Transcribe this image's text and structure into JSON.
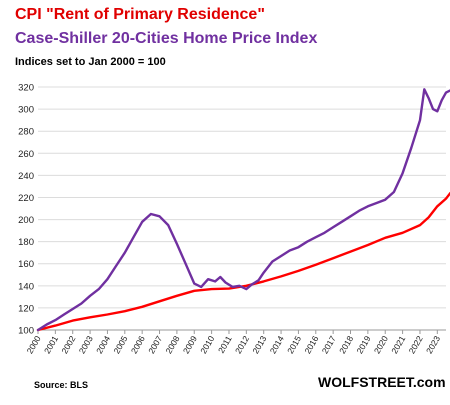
{
  "chart_data": {
    "type": "line",
    "title": "CPI \"Rent of Primary Residence\"",
    "title2": "Case-Shiller 20-Cities Home Price Index",
    "subtitle": "Indices set to Jan 2000 = 100",
    "source": "Source: BLS",
    "brand": "WOLFSTREET.com",
    "ylim": [
      100,
      330
    ],
    "xlim": [
      2000,
      2023.5
    ],
    "yticks": [
      100,
      120,
      140,
      160,
      180,
      200,
      220,
      240,
      260,
      280,
      300,
      320
    ],
    "xticks": [
      "2000",
      "2001",
      "2002",
      "2003",
      "2004",
      "2005",
      "2006",
      "2007",
      "2008",
      "2009",
      "2010",
      "2011",
      "2012",
      "2013",
      "2014",
      "2015",
      "2016",
      "2017",
      "2018",
      "2019",
      "2020",
      "2021",
      "2022",
      "2023"
    ],
    "grid": true,
    "series": [
      {
        "name": "CPI \"Rent of Primary Residence\"",
        "color": "#ff0000",
        "points": [
          [
            2000,
            100
          ],
          [
            2001,
            104
          ],
          [
            2002,
            108.5
          ],
          [
            2003,
            111.5
          ],
          [
            2004,
            114
          ],
          [
            2005,
            117
          ],
          [
            2006,
            121
          ],
          [
            2007,
            126
          ],
          [
            2008,
            131
          ],
          [
            2009,
            135.5
          ],
          [
            2010,
            137
          ],
          [
            2011,
            137.5
          ],
          [
            2012,
            140
          ],
          [
            2013,
            144
          ],
          [
            2014,
            148.5
          ],
          [
            2015,
            153.5
          ],
          [
            2016,
            159
          ],
          [
            2017,
            165
          ],
          [
            2018,
            171
          ],
          [
            2019,
            177
          ],
          [
            2020,
            183.5
          ],
          [
            2021,
            188
          ],
          [
            2022,
            195
          ],
          [
            2022.5,
            202
          ],
          [
            2023,
            212
          ],
          [
            2023.5,
            219
          ],
          [
            2023.75,
            224
          ]
        ]
      },
      {
        "name": "Case-Shiller 20-Cities Home Price Index",
        "color": "#7030a0",
        "points": [
          [
            2000,
            100
          ],
          [
            2000.5,
            105
          ],
          [
            2001,
            109
          ],
          [
            2001.5,
            114
          ],
          [
            2002,
            119
          ],
          [
            2002.5,
            124
          ],
          [
            2003,
            131
          ],
          [
            2003.5,
            137
          ],
          [
            2004,
            146
          ],
          [
            2004.5,
            158
          ],
          [
            2005,
            170
          ],
          [
            2005.5,
            184
          ],
          [
            2006,
            198
          ],
          [
            2006.5,
            205
          ],
          [
            2007,
            203
          ],
          [
            2007.5,
            195
          ],
          [
            2008,
            178
          ],
          [
            2008.5,
            160
          ],
          [
            2009,
            142
          ],
          [
            2009.4,
            139
          ],
          [
            2009.8,
            146
          ],
          [
            2010.2,
            144
          ],
          [
            2010.5,
            148
          ],
          [
            2010.8,
            143
          ],
          [
            2011.2,
            139
          ],
          [
            2011.6,
            140
          ],
          [
            2012,
            137
          ],
          [
            2012.3,
            141
          ],
          [
            2012.7,
            145
          ],
          [
            2013,
            152
          ],
          [
            2013.5,
            162
          ],
          [
            2014,
            167
          ],
          [
            2014.5,
            172
          ],
          [
            2015,
            175
          ],
          [
            2015.5,
            180
          ],
          [
            2016,
            184
          ],
          [
            2016.5,
            188
          ],
          [
            2017,
            193
          ],
          [
            2017.5,
            198
          ],
          [
            2018,
            203
          ],
          [
            2018.5,
            208
          ],
          [
            2019,
            212
          ],
          [
            2019.5,
            215
          ],
          [
            2020,
            218
          ],
          [
            2020.5,
            225
          ],
          [
            2021,
            242
          ],
          [
            2021.5,
            265
          ],
          [
            2022,
            290
          ],
          [
            2022.25,
            318
          ],
          [
            2022.5,
            310
          ],
          [
            2022.75,
            300
          ],
          [
            2023,
            298
          ],
          [
            2023.25,
            308
          ],
          [
            2023.5,
            315
          ],
          [
            2023.75,
            317
          ]
        ]
      }
    ]
  }
}
